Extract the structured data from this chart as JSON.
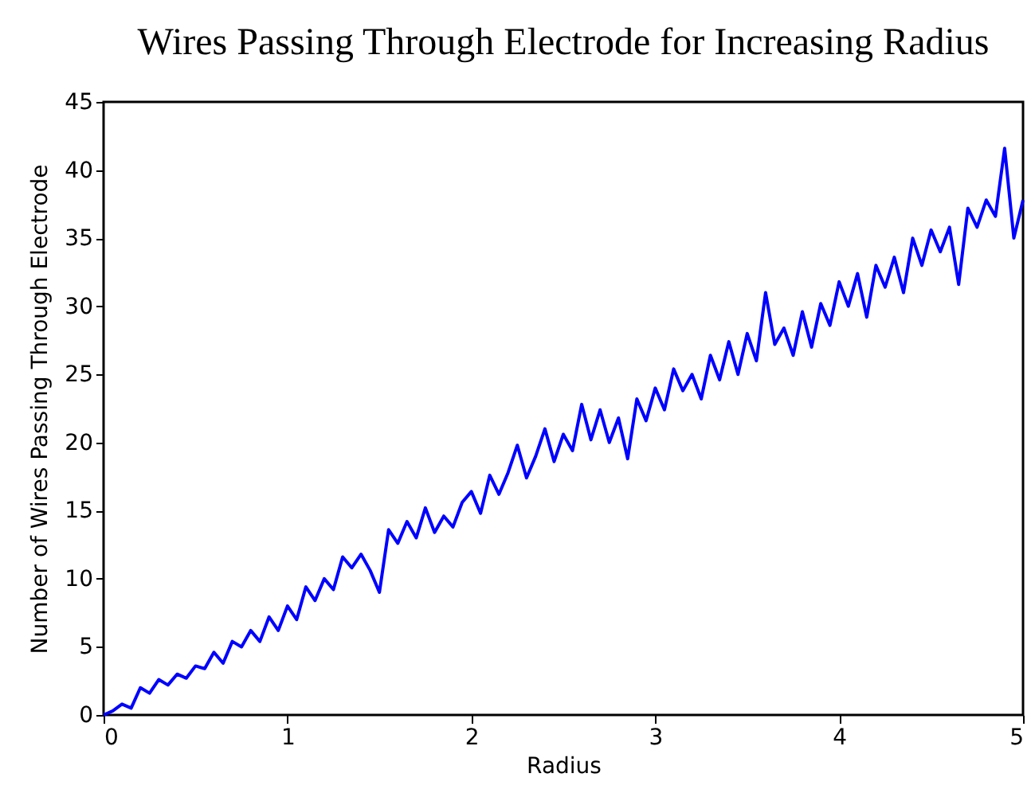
{
  "chart_data": {
    "type": "line",
    "title": "Wires Passing Through Electrode for Increasing Radius",
    "xlabel": "Radius",
    "ylabel": "Number of Wires Passing Through Electrode",
    "x": [
      0,
      0.05,
      0.1,
      0.15,
      0.2,
      0.25,
      0.3,
      0.35,
      0.4,
      0.45,
      0.5,
      0.55,
      0.6,
      0.65,
      0.7,
      0.75,
      0.8,
      0.85,
      0.9,
      0.95,
      1.0,
      1.05,
      1.1,
      1.15,
      1.2,
      1.25,
      1.3,
      1.35,
      1.4,
      1.45,
      1.5,
      1.55,
      1.6,
      1.65,
      1.7,
      1.75,
      1.8,
      1.85,
      1.9,
      1.95,
      2.0,
      2.05,
      2.1,
      2.15,
      2.2,
      2.25,
      2.3,
      2.35,
      2.4,
      2.45,
      2.5,
      2.55,
      2.6,
      2.65,
      2.7,
      2.75,
      2.8,
      2.85,
      2.9,
      2.95,
      3.0,
      3.05,
      3.1,
      3.15,
      3.2,
      3.25,
      3.3,
      3.35,
      3.4,
      3.45,
      3.5,
      3.55,
      3.6,
      3.65,
      3.7,
      3.75,
      3.8,
      3.85,
      3.9,
      3.95,
      4.0,
      4.05,
      4.1,
      4.15,
      4.2,
      4.25,
      4.3,
      4.35,
      4.4,
      4.45,
      4.5,
      4.55,
      4.6,
      4.65,
      4.7,
      4.75,
      4.8,
      4.85,
      4.9,
      4.95,
      5.0
    ],
    "series": [
      {
        "color": "#0000ff",
        "values": [
          0,
          0.3,
          0.8,
          0.5,
          2.0,
          1.6,
          2.6,
          2.2,
          3.0,
          2.7,
          3.6,
          3.4,
          4.6,
          3.8,
          5.4,
          5.0,
          6.2,
          5.4,
          7.2,
          6.2,
          8.0,
          7.0,
          9.4,
          8.4,
          10.0,
          9.2,
          11.6,
          10.8,
          11.8,
          10.6,
          9.0,
          13.6,
          12.6,
          14.2,
          13.0,
          15.2,
          13.4,
          14.6,
          13.8,
          15.6,
          16.4,
          14.8,
          17.6,
          16.2,
          17.8,
          19.8,
          17.4,
          19.0,
          21.0,
          18.6,
          20.6,
          19.4,
          22.8,
          20.2,
          22.4,
          20.0,
          21.8,
          18.8,
          23.2,
          21.6,
          24.0,
          22.4,
          25.4,
          23.8,
          25.0,
          23.2,
          26.4,
          24.6,
          27.4,
          25.0,
          28.0,
          26.0,
          31.0,
          27.2,
          28.4,
          26.4,
          29.6,
          27.0,
          30.2,
          28.6,
          31.8,
          30.0,
          32.4,
          29.2,
          33.0,
          31.4,
          33.6,
          31.0,
          35.0,
          33.0,
          35.6,
          34.0,
          35.8,
          31.6,
          37.2,
          35.8,
          37.8,
          36.6,
          41.6,
          35.0,
          37.8
        ]
      }
    ],
    "xlim": [
      0,
      5
    ],
    "xticks": [
      0,
      1,
      2,
      3,
      4,
      5
    ],
    "ylim": [
      0,
      45
    ],
    "yticks": [
      0,
      5,
      10,
      15,
      20,
      25,
      30,
      35,
      40,
      45
    ]
  }
}
